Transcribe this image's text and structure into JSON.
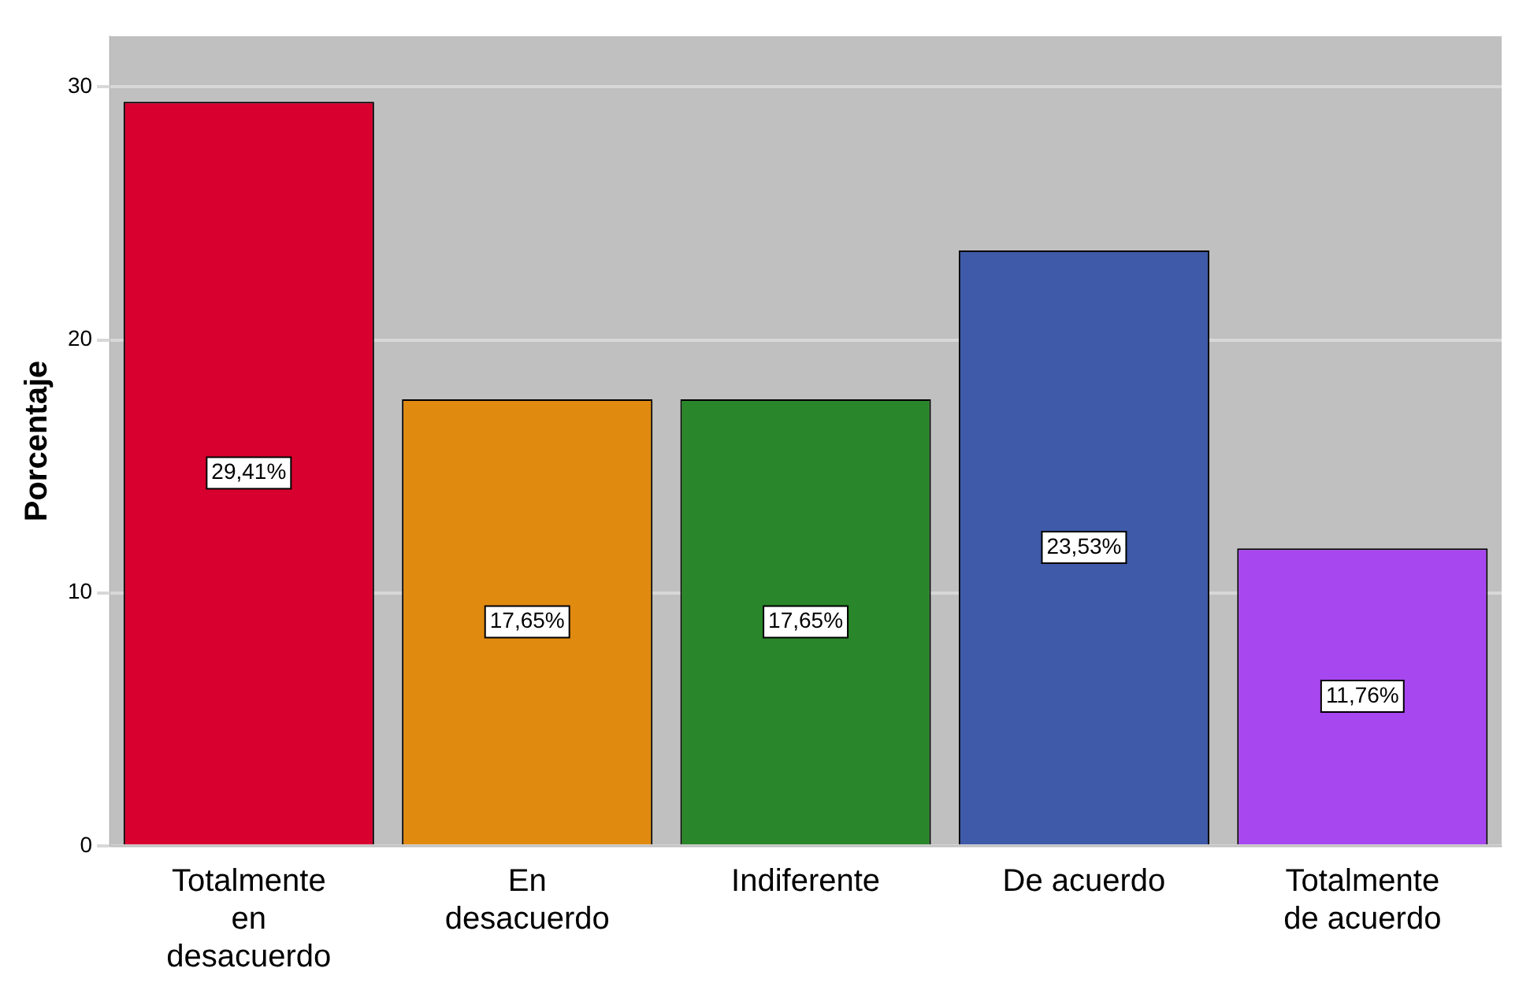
{
  "chart_data": {
    "type": "bar",
    "ylabel": "Porcentaje",
    "categories": [
      "Totalmente en desacuerdo",
      "En desacuerdo",
      "Indiferente",
      "De acuerdo",
      "Totalmente de acuerdo"
    ],
    "values": [
      29.41,
      17.65,
      17.65,
      23.53,
      11.76
    ],
    "colors": [
      "#d8002f",
      "#e08a10",
      "#2a862a",
      "#3e5aa8",
      "#a747f0"
    ],
    "value_labels": [
      "29,41%",
      "17,65%",
      "17,65%",
      "23,53%",
      "11,76%"
    ],
    "ylim": [
      0,
      32
    ],
    "yticks": [
      0,
      10,
      20,
      30
    ],
    "grid": "y",
    "legend": false
  }
}
